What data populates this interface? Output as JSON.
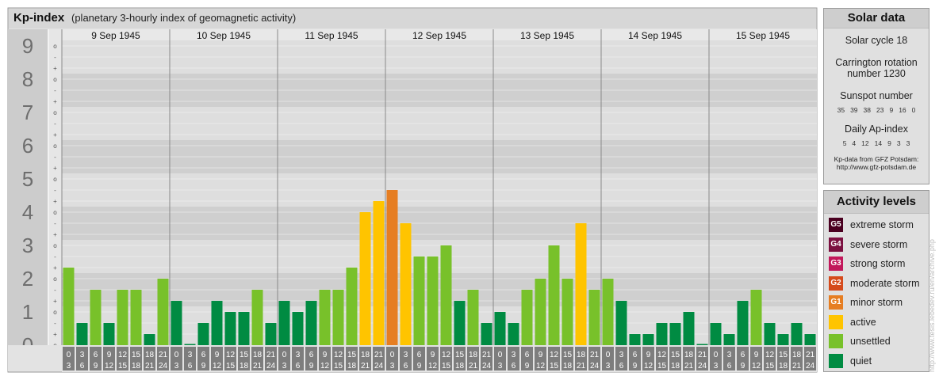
{
  "chart_data": {
    "type": "bar",
    "title": "Kp-index",
    "subtitle": "(planetary 3-hourly index of geomagnetic activity)",
    "ylim": [
      0,
      9
    ],
    "y_tick_labels": [
      "0",
      "1",
      "2",
      "3",
      "4",
      "5",
      "6",
      "7",
      "8",
      "9"
    ],
    "sub_tick_labels": [
      "o",
      "+",
      "-"
    ],
    "days": [
      "9 Sep 1945",
      "10 Sep 1945",
      "11 Sep 1945",
      "12 Sep 1945",
      "13 Sep 1945",
      "14 Sep 1945",
      "15 Sep 1945"
    ],
    "interval_labels": [
      {
        "top": "0",
        "bottom": "3"
      },
      {
        "top": "3",
        "bottom": "6"
      },
      {
        "top": "6",
        "bottom": "9"
      },
      {
        "top": "9",
        "bottom": "12"
      },
      {
        "top": "12",
        "bottom": "15"
      },
      {
        "top": "15",
        "bottom": "18"
      },
      {
        "top": "18",
        "bottom": "21"
      },
      {
        "top": "21",
        "bottom": "24"
      }
    ],
    "values": [
      [
        2.333,
        0.667,
        1.667,
        0.667,
        1.667,
        1.667,
        0.333,
        2.0
      ],
      [
        1.333,
        0.0,
        0.667,
        1.333,
        1.0,
        1.0,
        1.667,
        0.667
      ],
      [
        1.333,
        1.0,
        1.333,
        1.667,
        1.667,
        2.333,
        4.0,
        4.333
      ],
      [
        4.667,
        3.667,
        2.667,
        2.667,
        3.0,
        1.333,
        1.667,
        0.667
      ],
      [
        1.0,
        0.667,
        1.667,
        2.0,
        3.0,
        2.0,
        3.667,
        1.667
      ],
      [
        2.0,
        1.333,
        0.333,
        0.333,
        0.667,
        0.667,
        1.0,
        0.0
      ],
      [
        0.667,
        0.333,
        1.333,
        1.667,
        0.667,
        0.333,
        0.667,
        0.333
      ]
    ],
    "levels": [
      [
        3,
        2,
        3,
        2,
        3,
        3,
        2,
        3
      ],
      [
        2,
        2,
        2,
        2,
        2,
        2,
        3,
        2
      ],
      [
        2,
        2,
        2,
        3,
        3,
        3,
        4,
        4
      ],
      [
        5,
        4,
        3,
        3,
        3,
        2,
        3,
        2
      ],
      [
        2,
        2,
        3,
        3,
        3,
        3,
        4,
        3
      ],
      [
        3,
        2,
        2,
        2,
        2,
        2,
        2,
        2
      ],
      [
        2,
        2,
        2,
        3,
        2,
        2,
        2,
        2
      ]
    ],
    "level_colors": {
      "quiet": "#008b42",
      "unsettled": "#78c12a",
      "active": "#ffc400",
      "minor": "#e67e22",
      "moderate": "#d54a1b",
      "strong": "#c2185b",
      "severe": "#7b1040",
      "extreme": "#4a0020"
    },
    "grid": true
  },
  "solar": {
    "title": "Solar data",
    "cycle": "Solar cycle 18",
    "carrington_line1": "Carrington rotation",
    "carrington_line2": "number 1230",
    "sunspot_label": "Sunspot number",
    "sunspot_values": [
      "35",
      "39",
      "38",
      "23",
      "9",
      "16",
      "0"
    ],
    "ap_label": "Daily Ap-index",
    "ap_values": [
      "5",
      "4",
      "12",
      "14",
      "9",
      "3",
      "3"
    ],
    "source_line1": "Kp-data from GFZ Potsdam:",
    "source_line2": "http://www.gfz-potsdam.de"
  },
  "legend": {
    "title": "Activity levels",
    "items": [
      {
        "badge": "G5",
        "label": "extreme storm",
        "color": "#4a0020"
      },
      {
        "badge": "G4",
        "label": "severe storm",
        "color": "#7b1040"
      },
      {
        "badge": "G3",
        "label": "strong storm",
        "color": "#c2185b"
      },
      {
        "badge": "G2",
        "label": "moderate storm",
        "color": "#d54a1b"
      },
      {
        "badge": "G1",
        "label": "minor storm",
        "color": "#e67e22"
      },
      {
        "badge": "",
        "label": "active",
        "color": "#ffc400"
      },
      {
        "badge": "",
        "label": "unsettled",
        "color": "#78c12a"
      },
      {
        "badge": "",
        "label": "quiet",
        "color": "#008b42"
      }
    ]
  },
  "credit": "http://www.tesis.lebedev.ru/en/archive.php"
}
